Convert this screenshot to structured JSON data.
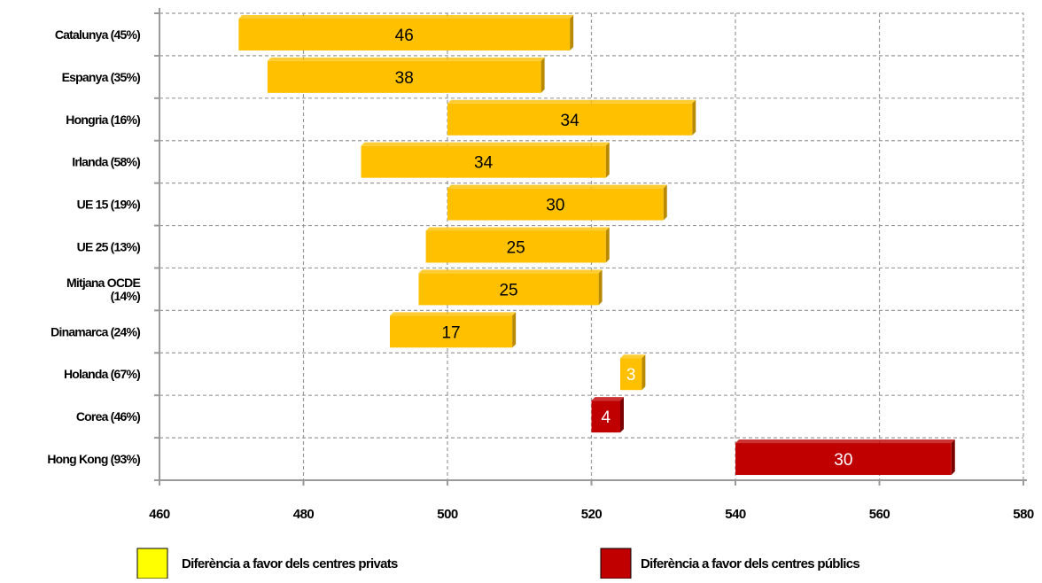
{
  "chart_data": {
    "type": "bar",
    "orientation": "horizontal",
    "subtype": "floating",
    "categories": [
      [
        "Catalunya (45%)"
      ],
      [
        "Espanya (35%)"
      ],
      [
        "Hongria (16%)"
      ],
      [
        "Irlanda (58%)"
      ],
      [
        "UE 15 (19%)"
      ],
      [
        "UE 25 (13%)"
      ],
      [
        "Mitjana OCDE",
        "(14%)"
      ],
      [
        "Dinamarca (24%)"
      ],
      [
        "Holanda (67%)"
      ],
      [
        "Corea (46%)"
      ],
      [
        "Hong Kong (93%)"
      ]
    ],
    "bars": [
      {
        "start": 471,
        "end": 517,
        "value": "46",
        "series": "private"
      },
      {
        "start": 475,
        "end": 513,
        "value": "38",
        "series": "private"
      },
      {
        "start": 500,
        "end": 534,
        "value": "34",
        "series": "private"
      },
      {
        "start": 488,
        "end": 522,
        "value": "34",
        "series": "private"
      },
      {
        "start": 500,
        "end": 530,
        "value": "30",
        "series": "private"
      },
      {
        "start": 497,
        "end": 522,
        "value": "25",
        "series": "private"
      },
      {
        "start": 496,
        "end": 521,
        "value": "25",
        "series": "private"
      },
      {
        "start": 492,
        "end": 509,
        "value": "17",
        "series": "private"
      },
      {
        "start": 524,
        "end": 527,
        "value": "3",
        "series": "private"
      },
      {
        "start": 520,
        "end": 524,
        "value": "4",
        "series": "public"
      },
      {
        "start": 540,
        "end": 570,
        "value": "30",
        "series": "public"
      }
    ],
    "xlim": [
      460,
      580
    ],
    "xticks": [
      "460",
      "480",
      "500",
      "520",
      "540",
      "560",
      "580"
    ],
    "grid": true,
    "legend_position": "bottom",
    "series": [
      {
        "key": "private",
        "name": "Diferència a favor dels centres privats",
        "color": "#FFC000",
        "legend_color": "#FFFF00"
      },
      {
        "key": "public",
        "name": "Diferència a favor dels centres públics",
        "color": "#C00000",
        "legend_color": "#C00000"
      }
    ],
    "value_label_colors": {
      "private": "#000000",
      "public": "#FFFFFF",
      "small_private": "#FFFFFF"
    }
  }
}
